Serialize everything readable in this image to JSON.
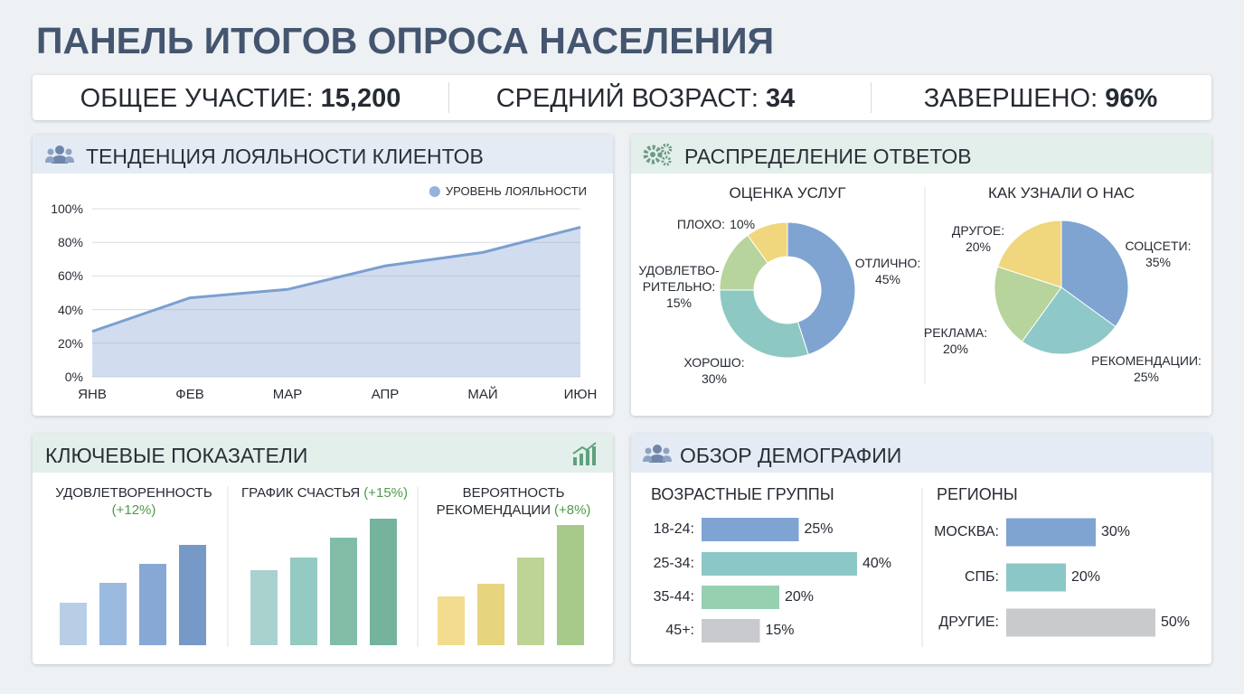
{
  "title": "ПАНЕЛЬ ИТОГОВ ОПРОСА НАСЕЛЕНИЯ",
  "kpis": [
    {
      "label": "ОБЩЕЕ УЧАСТИЕ:",
      "value": "15,200"
    },
    {
      "label": "СРЕДНИЙ ВОЗРАСТ:",
      "value": "34"
    },
    {
      "label": "ЗАВЕРШЕНО:",
      "value": "96%"
    }
  ],
  "panels": [
    "ТЕНДЕНЦИЯ ЛОЯЛЬНОСТИ КЛИЕНТОВ",
    "РАСПРЕДЕЛЕНИЕ ОТВЕТОВ",
    "КЛЮЧЕВЫЕ ПОКАЗАТЕЛИ",
    "ОБЗОР ДЕМОГРАФИИ"
  ],
  "chart_data": [
    {
      "type": "area",
      "categories": [
        "ЯНВ",
        "ФЕВ",
        "МАР",
        "АПР",
        "МАЙ",
        "ИЮН"
      ],
      "series": [
        {
          "name": "УРОВЕНЬ ЛОЯЛЬНОСТИ",
          "color": "#7b9fd0",
          "values": [
            27,
            47,
            52,
            66,
            74,
            89
          ]
        }
      ],
      "ylim": [
        0,
        100
      ],
      "yticks": [
        {
          "value": 0,
          "label": "0%"
        },
        {
          "value": 20,
          "label": "20%"
        },
        {
          "value": 40,
          "label": "40%"
        },
        {
          "value": 60,
          "label": "60%"
        },
        {
          "value": 80,
          "label": "80%"
        },
        {
          "value": 100,
          "label": "100%"
        }
      ],
      "grid": true,
      "legend": "top-right"
    },
    {
      "type": "donut",
      "title": "ОЦЕНКА УСЛУГ",
      "categories": [
        "ОТЛИЧНО:",
        "ХОРОШО:",
        "УДОВЛЕТВО-\nРИТЕЛЬНО:",
        "ПЛОХО:"
      ],
      "values": [
        45,
        30,
        15,
        10
      ],
      "value_labels": [
        "45%",
        "30%",
        "15%",
        "10%"
      ],
      "colors": [
        "#7fa4d1",
        "#8ec8c2",
        "#b6d49c",
        "#f0d67c"
      ]
    },
    {
      "type": "pie",
      "title": "КАК УЗНАЛИ О НАС",
      "categories": [
        "СОЦСЕТИ:",
        "РЕКОМЕНДАЦИИ:",
        "РЕКЛАМА:",
        "ДРУГОЕ:"
      ],
      "values": [
        35,
        25,
        20,
        20
      ],
      "value_labels": [
        "35%",
        "25%",
        "20%",
        "20%"
      ],
      "colors": [
        "#7fa4d1",
        "#8ec8c8",
        "#b6d49c",
        "#f0d67c"
      ]
    },
    {
      "type": "bar",
      "title": "УДОВЛЕТВОРЕННОСТЬ",
      "subtitle": "(+12%)",
      "values": [
        47,
        69,
        90,
        111
      ],
      "colors": [
        "#b8cee7",
        "#9bbadf",
        "#87a8d4",
        "#7699c7"
      ],
      "ylim": [
        0,
        150
      ]
    },
    {
      "type": "bar",
      "title": "ГРАФИК СЧАСТЬЯ",
      "subtitle": "(+15%)",
      "values": [
        83,
        97,
        119,
        140
      ],
      "colors": [
        "#a9d1cd",
        "#93cac1",
        "#81bca7",
        "#75b39d"
      ],
      "ylim": [
        0,
        150
      ]
    },
    {
      "type": "bar",
      "title": "ВЕРОЯТНОСТЬ\nРЕКОМЕНДАЦИИ",
      "subtitle": "(+8%)",
      "values": [
        54,
        68,
        97,
        133
      ],
      "colors": [
        "#f2dd8f",
        "#e7d47f",
        "#bdd495",
        "#a7c989"
      ],
      "ylim": [
        0,
        150
      ]
    },
    {
      "type": "hbar",
      "title": "ВОЗРАСТНЫЕ ГРУППЫ",
      "categories": [
        "18-24:",
        "25-34:",
        "35-44:",
        "45+:"
      ],
      "values": [
        25,
        40,
        20,
        15
      ],
      "value_labels": [
        "25%",
        "40%",
        "20%",
        "15%"
      ],
      "colors": [
        "#7fa4d1",
        "#8cc7c7",
        "#96d0b1",
        "#c9cacd"
      ]
    },
    {
      "type": "hbar",
      "title": "РЕГИОНЫ",
      "categories": [
        "МОСКВА:",
        "СПБ:",
        "ДРУГИЕ:"
      ],
      "values": [
        30,
        20,
        50
      ],
      "value_labels": [
        "30%",
        "20%",
        "50%"
      ],
      "colors": [
        "#7fa4d1",
        "#8cc7c7",
        "#c9cacd"
      ]
    }
  ]
}
